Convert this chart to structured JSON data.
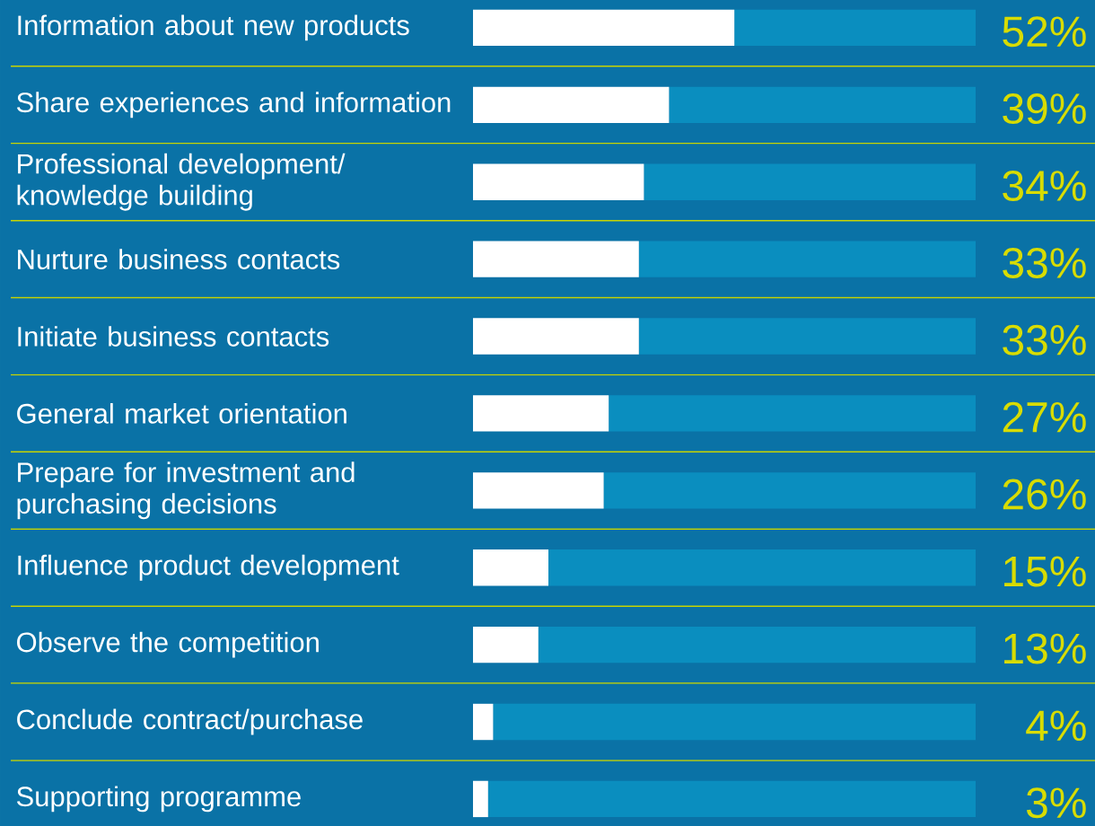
{
  "chart_data": {
    "type": "bar",
    "orientation": "horizontal",
    "stacked": true,
    "categories": [
      "Information about new products",
      "Share experiences and information",
      "Professional development/ knowledge building",
      "Nurture business contacts",
      "Initiate business contacts",
      "General market orientation",
      "Prepare for investment and purchasing decisions",
      "Influence product development",
      "Observe the competition",
      "Conclude contract/purchase",
      "Supporting programme"
    ],
    "series": [
      {
        "color": "#ffffff",
        "values": [
          52,
          39,
          34,
          33,
          33,
          27,
          26,
          15,
          13,
          4,
          3
        ],
        "value_labels": [
          "52%",
          "39%",
          "34%",
          "33%",
          "33%",
          "27%",
          "26%",
          "15%",
          "13%",
          "4%",
          "3%"
        ]
      },
      {
        "color": "#0a8ebf",
        "values": [
          48,
          61,
          66,
          67,
          67,
          73,
          74,
          85,
          87,
          96,
          97
        ]
      }
    ],
    "xlim": [
      0,
      100
    ],
    "tick_labels": "y"
  }
}
